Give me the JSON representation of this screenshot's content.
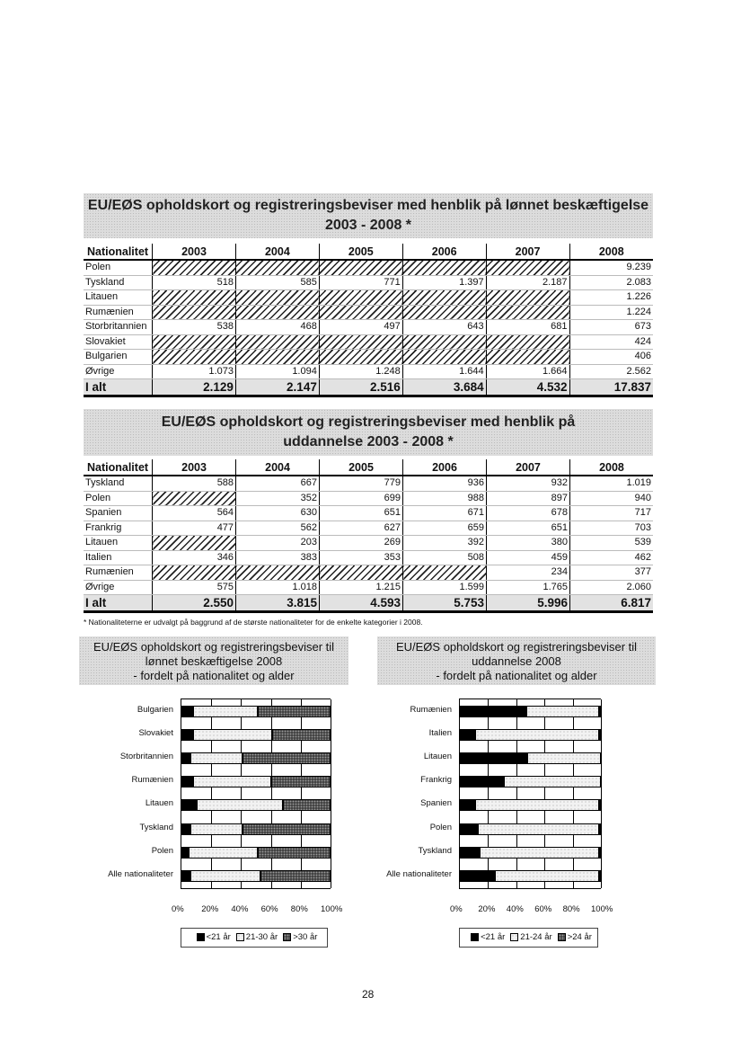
{
  "table1": {
    "title_line1": "EU/EØS opholdskort og registreringsbeviser med henblik på lønnet beskæftigelse",
    "title_line2": "2003 - 2008 *",
    "headers": [
      "Nationalitet",
      "2003",
      "2004",
      "2005",
      "2006",
      "2007",
      "2008"
    ],
    "rows": [
      {
        "label": "Polen",
        "values": [
          null,
          null,
          null,
          null,
          null,
          "9.239"
        ]
      },
      {
        "label": "Tyskland",
        "values": [
          "518",
          "585",
          "771",
          "1.397",
          "2.187",
          "2.083"
        ]
      },
      {
        "label": "Litauen",
        "values": [
          null,
          null,
          null,
          null,
          null,
          "1.226"
        ]
      },
      {
        "label": "Rumænien",
        "values": [
          null,
          null,
          null,
          null,
          null,
          "1.224"
        ]
      },
      {
        "label": "Storbritannien",
        "values": [
          "538",
          "468",
          "497",
          "643",
          "681",
          "673"
        ]
      },
      {
        "label": "Slovakiet",
        "values": [
          null,
          null,
          null,
          null,
          null,
          "424"
        ]
      },
      {
        "label": "Bulgarien",
        "values": [
          null,
          null,
          null,
          null,
          null,
          "406"
        ]
      },
      {
        "label": "Øvrige",
        "values": [
          "1.073",
          "1.094",
          "1.248",
          "1.644",
          "1.664",
          "2.562"
        ]
      }
    ],
    "total": {
      "label": "I alt",
      "values": [
        "2.129",
        "2.147",
        "2.516",
        "3.684",
        "4.532",
        "17.837"
      ]
    }
  },
  "table2": {
    "title_line1": "EU/EØS opholdskort og registreringsbeviser med henblik på",
    "title_line2": "uddannelse 2003 - 2008 *",
    "headers": [
      "Nationalitet",
      "2003",
      "2004",
      "2005",
      "2006",
      "2007",
      "2008"
    ],
    "rows": [
      {
        "label": "Tyskland",
        "values": [
          "588",
          "667",
          "779",
          "936",
          "932",
          "1.019"
        ]
      },
      {
        "label": "Polen",
        "values": [
          null,
          "352",
          "699",
          "988",
          "897",
          "940"
        ]
      },
      {
        "label": "Spanien",
        "values": [
          "564",
          "630",
          "651",
          "671",
          "678",
          "717"
        ]
      },
      {
        "label": "Frankrig",
        "values": [
          "477",
          "562",
          "627",
          "659",
          "651",
          "703"
        ]
      },
      {
        "label": "Litauen",
        "values": [
          null,
          "203",
          "269",
          "392",
          "380",
          "539"
        ]
      },
      {
        "label": "Italien",
        "values": [
          "346",
          "383",
          "353",
          "508",
          "459",
          "462"
        ]
      },
      {
        "label": "Rumænien",
        "values": [
          null,
          null,
          null,
          null,
          "234",
          "377"
        ]
      },
      {
        "label": "Øvrige",
        "values": [
          "575",
          "1.018",
          "1.215",
          "1.599",
          "1.765",
          "2.060"
        ]
      }
    ],
    "total": {
      "label": "I alt",
      "values": [
        "2.550",
        "3.815",
        "4.593",
        "5.753",
        "5.996",
        "6.817"
      ]
    }
  },
  "footnote": "* Nationaliteterne er udvalgt på baggrund af de største nationaliteter for de enkelte kategorier i 2008.",
  "page_number": "28",
  "colors": {
    "black": "#000000",
    "light": "#e8e8e8",
    "dark": "#555555"
  },
  "chart_data": [
    {
      "type": "bar",
      "stacked": true,
      "orientation": "horizontal",
      "title_lines": [
        "EU/EØS opholdskort og registreringsbeviser til",
        "lønnet beskæftigelse 2008",
        "- fordelt på nationalitet og alder"
      ],
      "categories": [
        "Bulgarien",
        "Slovakiet",
        "Storbritannien",
        "Rumænien",
        "Litauen",
        "Tyskland",
        "Polen",
        "Alle nationaliteter"
      ],
      "series": [
        {
          "name": "<21 år",
          "values": [
            8,
            8,
            6,
            8,
            10,
            6,
            5,
            6
          ]
        },
        {
          "name": "21-30 år",
          "values": [
            43,
            53,
            35,
            52,
            58,
            35,
            46,
            47
          ]
        },
        {
          "name": ">30 år",
          "values": [
            49,
            39,
            59,
            40,
            32,
            59,
            49,
            47
          ]
        }
      ],
      "xlim": [
        0,
        100
      ],
      "x_ticks": [
        "0%",
        "20%",
        "40%",
        "60%",
        "80%",
        "100%"
      ],
      "grid": true,
      "legend": "bottom"
    },
    {
      "type": "bar",
      "stacked": true,
      "orientation": "horizontal",
      "title_lines": [
        "EU/EØS opholdskort og registreringsbeviser til",
        "uddannelse 2008",
        "- fordelt på nationalitet og alder"
      ],
      "categories": [
        "Rumænien",
        "Italien",
        "Litauen",
        "Frankrig",
        "Spanien",
        "Polen",
        "Tyskland",
        "Alle nationaliteter"
      ],
      "series": [
        {
          "name": "<21 år",
          "values": [
            47,
            11,
            48,
            31,
            11,
            13,
            14,
            25
          ]
        },
        {
          "name": "21-24 år",
          "values": [
            52,
            88,
            52,
            69,
            88,
            86,
            85,
            74
          ]
        },
        {
          "name": ">24 år",
          "values": [
            1,
            1,
            0,
            0,
            1,
            1,
            1,
            1
          ]
        }
      ],
      "xlim": [
        0,
        100
      ],
      "x_ticks": [
        "0%",
        "20%",
        "40%",
        "60%",
        "80%",
        "100%"
      ],
      "grid": true,
      "legend": "bottom"
    }
  ]
}
